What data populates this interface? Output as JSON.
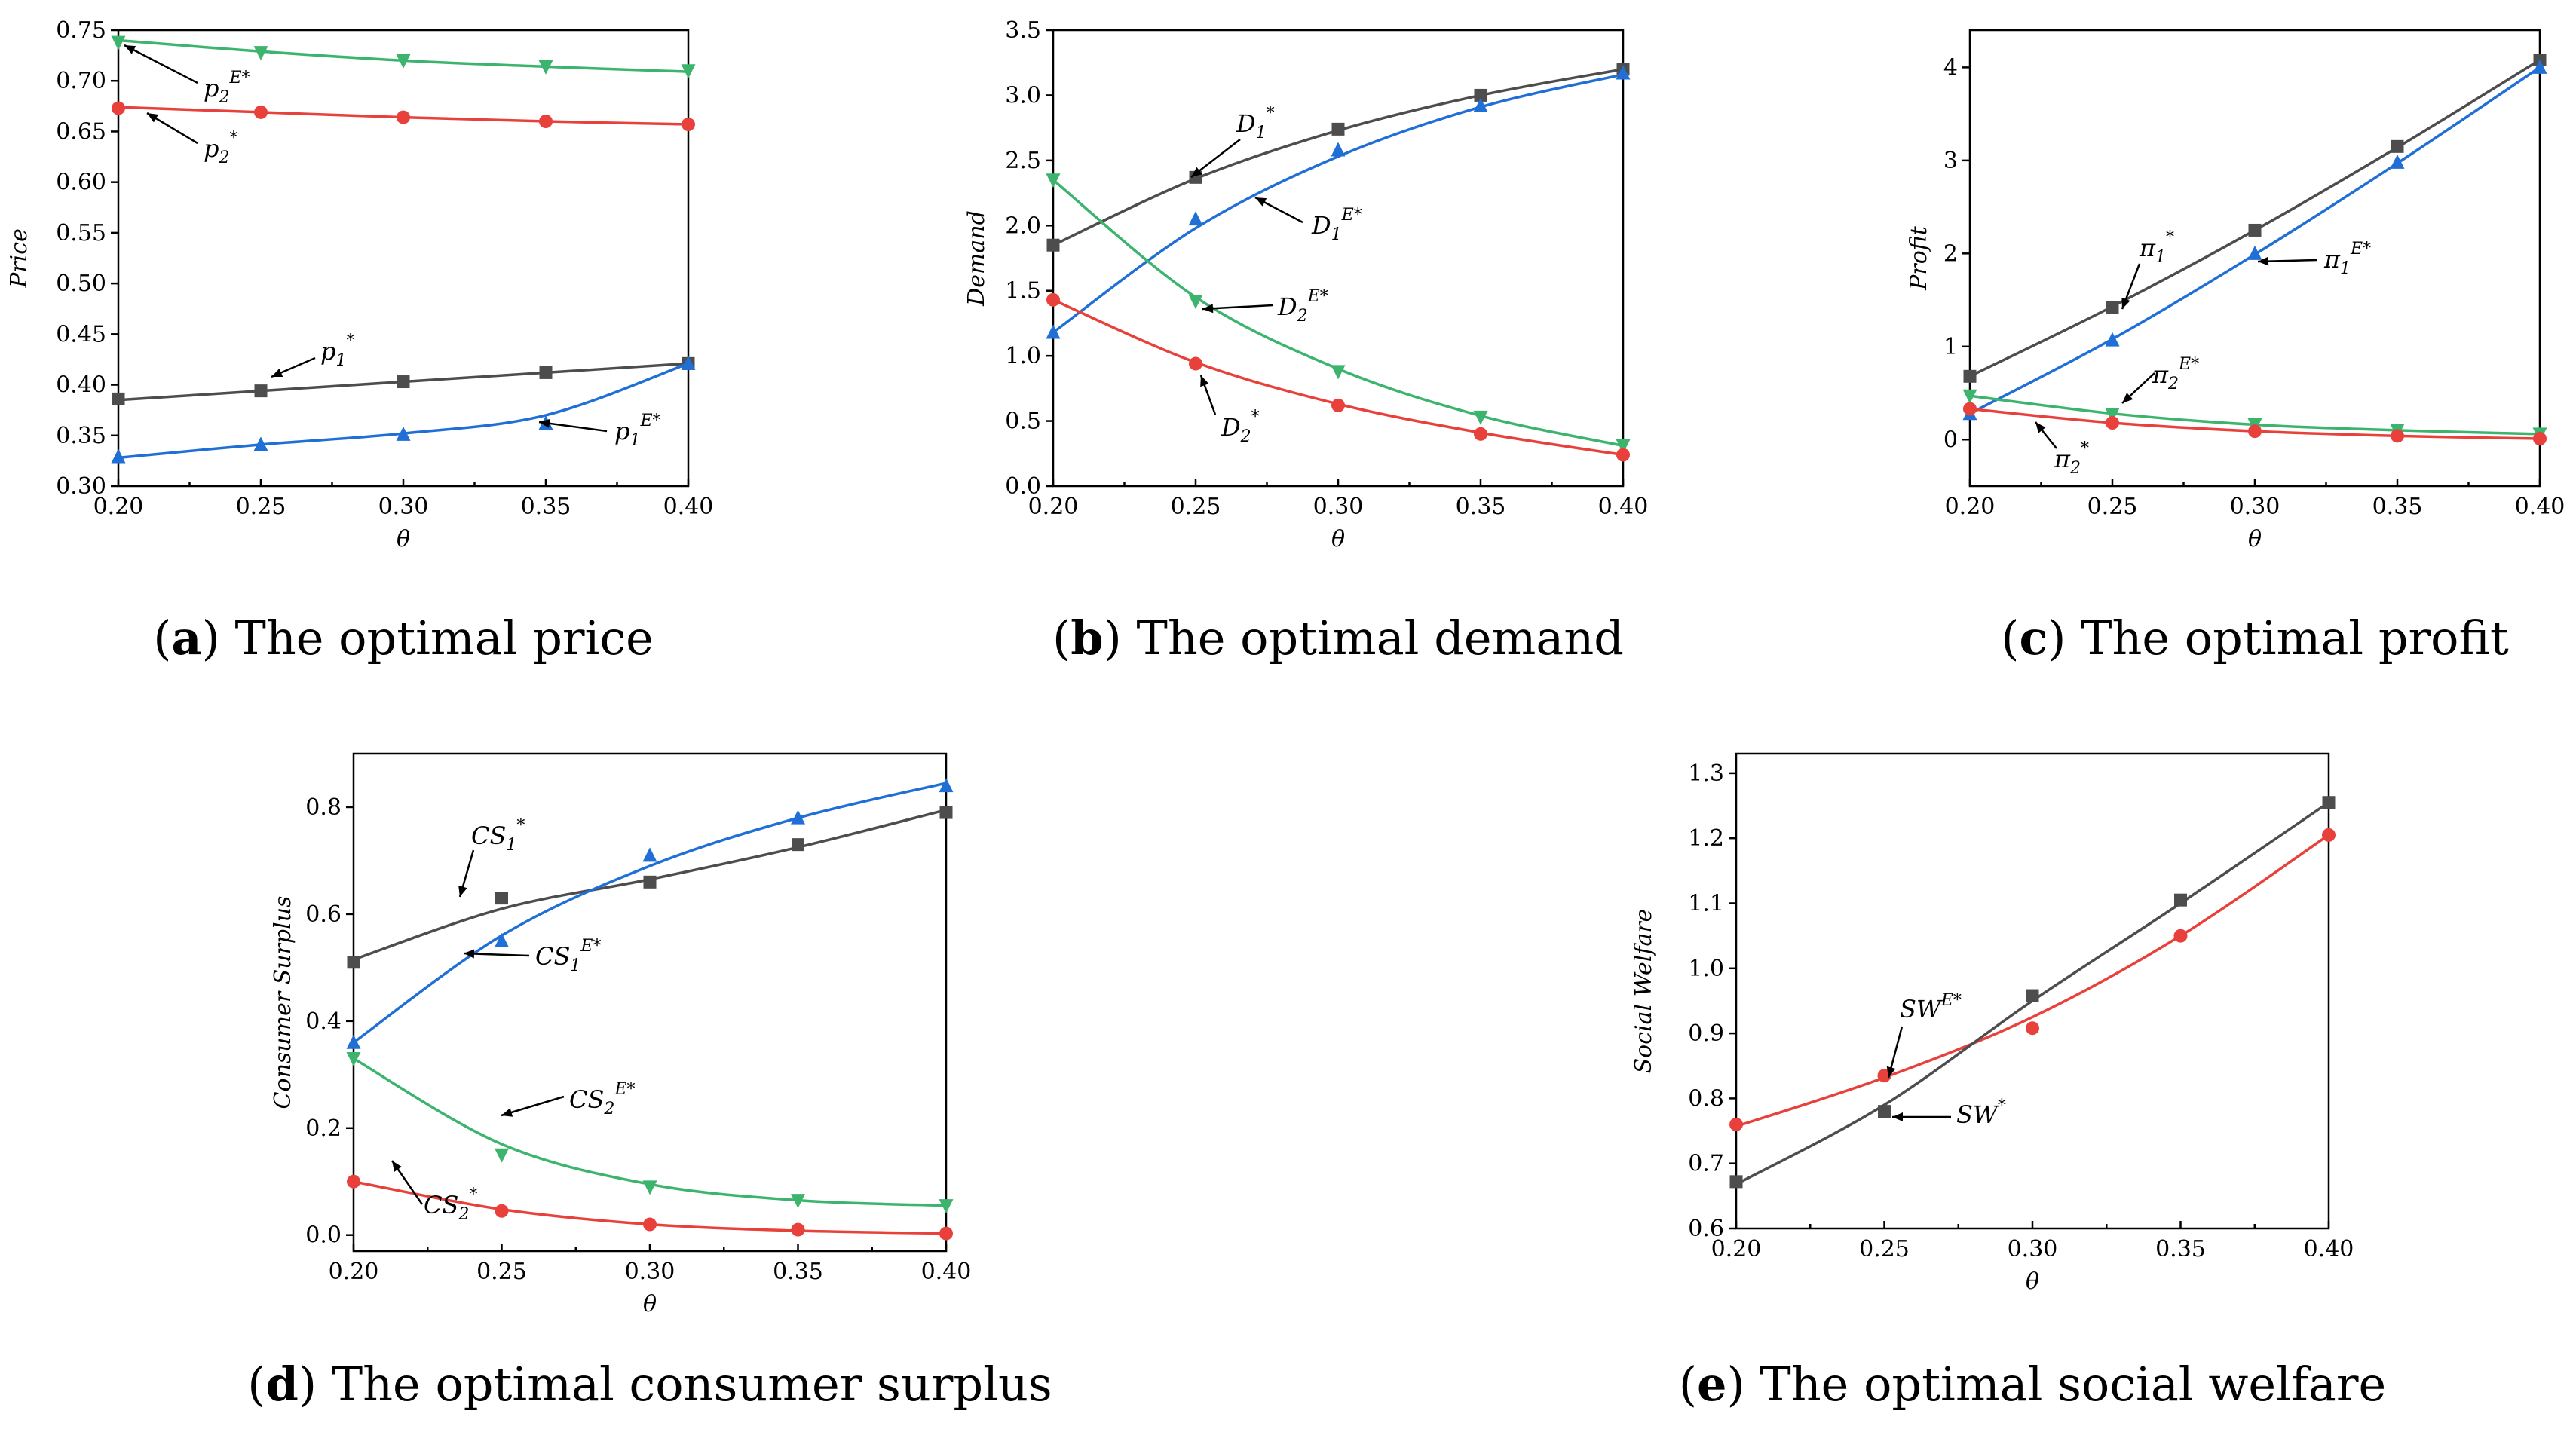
{
  "chart_data": [
    {
      "id": "a",
      "type": "line",
      "caption_letter": "a",
      "caption_text": "The optimal price",
      "xlabel": "θ",
      "ylabel": "Price",
      "xlim": [
        0.2,
        0.4
      ],
      "ylim": [
        0.3,
        0.75
      ],
      "xticks": [
        "0.20",
        "0.25",
        "0.30",
        "0.35",
        "0.40"
      ],
      "yticks": [
        "0.30",
        "0.35",
        "0.40",
        "0.45",
        "0.50",
        "0.55",
        "0.60",
        "0.65",
        "0.70",
        "0.75"
      ],
      "x": [
        0.2,
        0.25,
        0.3,
        0.35,
        0.4
      ],
      "series": [
        {
          "name": "p2E*",
          "color": "#3cb46e",
          "marker": "triangle-down",
          "values": [
            0.738,
            0.728,
            0.72,
            0.714,
            0.71
          ],
          "curve": [
            0.74,
            0.729,
            0.72,
            0.714,
            0.709
          ]
        },
        {
          "name": "p2*",
          "color": "#e8413c",
          "marker": "circle",
          "values": [
            0.673,
            0.669,
            0.664,
            0.66,
            0.657
          ],
          "curve": [
            0.674,
            0.669,
            0.664,
            0.66,
            0.657
          ]
        },
        {
          "name": "p1*",
          "color": "#4d4d4d",
          "marker": "square",
          "values": [
            0.386,
            0.394,
            0.403,
            0.412,
            0.421
          ],
          "curve": [
            0.385,
            0.394,
            0.403,
            0.412,
            0.421
          ]
        },
        {
          "name": "p1E*",
          "color": "#1f6fd6",
          "marker": "triangle-up",
          "values": [
            0.329,
            0.341,
            0.351,
            0.362,
            0.421
          ],
          "curve": [
            0.328,
            0.341,
            0.352,
            0.37,
            0.421
          ]
        }
      ],
      "annotations": [
        {
          "base": "p",
          "sub": "2",
          "sup": "E*"
        },
        {
          "base": "p",
          "sub": "2",
          "sup": "*"
        },
        {
          "base": "p",
          "sub": "1",
          "sup": "*"
        },
        {
          "base": "p",
          "sub": "1",
          "sup": "E*"
        }
      ]
    },
    {
      "id": "b",
      "type": "line",
      "caption_letter": "b",
      "caption_text": "The optimal demand",
      "xlabel": "θ",
      "ylabel": "Demand",
      "xlim": [
        0.2,
        0.4
      ],
      "ylim": [
        0,
        3.5
      ],
      "xticks": [
        "0.20",
        "0.25",
        "0.30",
        "0.35",
        "0.40"
      ],
      "yticks": [
        "0.0",
        "0.5",
        "1.0",
        "1.5",
        "2.0",
        "2.5",
        "3.0",
        "3.5"
      ],
      "x": [
        0.2,
        0.25,
        0.3,
        0.35,
        0.4
      ],
      "series": [
        {
          "name": "D1*",
          "color": "#4d4d4d",
          "marker": "square",
          "values": [
            1.85,
            2.37,
            2.74,
            3.0,
            3.2
          ],
          "curve": [
            1.85,
            2.36,
            2.73,
            3.0,
            3.2
          ]
        },
        {
          "name": "D1E*",
          "color": "#1f6fd6",
          "marker": "triangle-up",
          "values": [
            1.18,
            2.05,
            2.58,
            2.92,
            3.17
          ],
          "curve": [
            1.18,
            1.98,
            2.53,
            2.91,
            3.16
          ]
        },
        {
          "name": "D2E*",
          "color": "#3cb46e",
          "marker": "triangle-down",
          "values": [
            2.35,
            1.42,
            0.88,
            0.53,
            0.31
          ],
          "curve": [
            2.35,
            1.45,
            0.9,
            0.54,
            0.31
          ]
        },
        {
          "name": "D2*",
          "color": "#e8413c",
          "marker": "circle",
          "values": [
            1.43,
            0.94,
            0.62,
            0.4,
            0.24
          ],
          "curve": [
            1.43,
            0.95,
            0.63,
            0.41,
            0.24
          ]
        }
      ],
      "annotations": [
        {
          "base": "D",
          "sub": "1",
          "sup": "*"
        },
        {
          "base": "D",
          "sub": "1",
          "sup": "E*"
        },
        {
          "base": "D",
          "sub": "2",
          "sup": "E*"
        },
        {
          "base": "D",
          "sub": "2",
          "sup": "*"
        }
      ]
    },
    {
      "id": "c",
      "type": "line",
      "caption_letter": "c",
      "caption_text": "The optimal profit",
      "xlabel": "θ",
      "ylabel": "Profit",
      "xlim": [
        0.2,
        0.4
      ],
      "ylim": [
        -0.5,
        4.4
      ],
      "xticks": [
        "0.20",
        "0.25",
        "0.30",
        "0.35",
        "0.40"
      ],
      "yticks": [
        "0",
        "1",
        "2",
        "3",
        "4"
      ],
      "x": [
        0.2,
        0.25,
        0.3,
        0.35,
        0.4
      ],
      "series": [
        {
          "name": "π1*",
          "color": "#4d4d4d",
          "marker": "square",
          "values": [
            0.68,
            1.42,
            2.25,
            3.15,
            4.08
          ],
          "curve": [
            0.68,
            1.43,
            2.25,
            3.14,
            4.08
          ]
        },
        {
          "name": "π1E*",
          "color": "#1f6fd6",
          "marker": "triangle-up",
          "values": [
            0.28,
            1.07,
            2.0,
            2.98,
            4.0
          ],
          "curve": [
            0.28,
            1.08,
            1.99,
            2.97,
            4.0
          ]
        },
        {
          "name": "π2E*",
          "color": "#3cb46e",
          "marker": "triangle-down",
          "values": [
            0.47,
            0.27,
            0.16,
            0.1,
            0.06
          ],
          "curve": [
            0.47,
            0.28,
            0.16,
            0.1,
            0.06
          ]
        },
        {
          "name": "π2*",
          "color": "#e8413c",
          "marker": "circle",
          "values": [
            0.33,
            0.18,
            0.09,
            0.04,
            0.01
          ],
          "curve": [
            0.33,
            0.18,
            0.09,
            0.04,
            0.01
          ]
        }
      ],
      "annotations": [
        {
          "base": "π",
          "sub": "1",
          "sup": "*"
        },
        {
          "base": "π",
          "sub": "1",
          "sup": "E*"
        },
        {
          "base": "π",
          "sub": "2",
          "sup": "E*"
        },
        {
          "base": "π",
          "sub": "2",
          "sup": "*"
        }
      ]
    },
    {
      "id": "d",
      "type": "line",
      "caption_letter": "d",
      "caption_text": "The optimal consumer surplus",
      "xlabel": "θ",
      "ylabel": "Consumer Surplus",
      "xlim": [
        0.2,
        0.4
      ],
      "ylim": [
        -0.03,
        0.9
      ],
      "xticks": [
        "0.20",
        "0.25",
        "0.30",
        "0.35",
        "0.40"
      ],
      "yticks": [
        "0.0",
        "0.2",
        "0.4",
        "0.6",
        "0.8"
      ],
      "x": [
        0.2,
        0.25,
        0.3,
        0.35,
        0.4
      ],
      "series": [
        {
          "name": "CS1*",
          "color": "#4d4d4d",
          "marker": "square",
          "values": [
            0.51,
            0.63,
            0.66,
            0.73,
            0.79
          ],
          "curve": [
            0.515,
            0.61,
            0.665,
            0.725,
            0.795
          ]
        },
        {
          "name": "CS1E*",
          "color": "#1f6fd6",
          "marker": "triangle-up",
          "values": [
            0.36,
            0.55,
            0.71,
            0.78,
            0.84
          ],
          "curve": [
            0.36,
            0.56,
            0.69,
            0.78,
            0.845
          ]
        },
        {
          "name": "CS2E*",
          "color": "#3cb46e",
          "marker": "triangle-down",
          "values": [
            0.33,
            0.15,
            0.09,
            0.065,
            0.055
          ],
          "curve": [
            0.33,
            0.17,
            0.095,
            0.065,
            0.055
          ]
        },
        {
          "name": "CS2*",
          "color": "#e8413c",
          "marker": "circle",
          "values": [
            0.1,
            0.045,
            0.02,
            0.01,
            0.003
          ],
          "curve": [
            0.1,
            0.048,
            0.02,
            0.008,
            0.003
          ]
        }
      ],
      "annotations": [
        {
          "base": "CS",
          "sub": "1",
          "sup": "*"
        },
        {
          "base": "CS",
          "sub": "1",
          "sup": "E*"
        },
        {
          "base": "CS",
          "sub": "2",
          "sup": "E*"
        },
        {
          "base": "CS",
          "sub": "2",
          "sup": "*"
        }
      ]
    },
    {
      "id": "e",
      "type": "line",
      "caption_letter": "e",
      "caption_text": "The optimal social welfare",
      "xlabel": "θ",
      "ylabel": "Social Welfare",
      "xlim": [
        0.2,
        0.4
      ],
      "ylim": [
        0.6,
        1.33
      ],
      "xticks": [
        "0.20",
        "0.25",
        "0.30",
        "0.35",
        "0.40"
      ],
      "yticks": [
        "0.6",
        "0.7",
        "0.8",
        "0.9",
        "1.0",
        "1.1",
        "1.2",
        "1.3"
      ],
      "x": [
        0.2,
        0.25,
        0.3,
        0.35,
        0.4
      ],
      "series": [
        {
          "name": "SWE*",
          "color": "#e8413c",
          "marker": "circle",
          "values": [
            0.76,
            0.835,
            0.908,
            1.05,
            1.205
          ],
          "curve": [
            0.757,
            0.832,
            0.925,
            1.05,
            1.205
          ]
        },
        {
          "name": "SW*",
          "color": "#4d4d4d",
          "marker": "square",
          "values": [
            0.672,
            0.78,
            0.958,
            1.105,
            1.255
          ],
          "curve": [
            0.668,
            0.79,
            0.95,
            1.1,
            1.255
          ]
        }
      ],
      "annotations": [
        {
          "base": "SW",
          "sub": "",
          "sup": "E*"
        },
        {
          "base": "SW",
          "sub": "",
          "sup": "*"
        }
      ]
    }
  ]
}
